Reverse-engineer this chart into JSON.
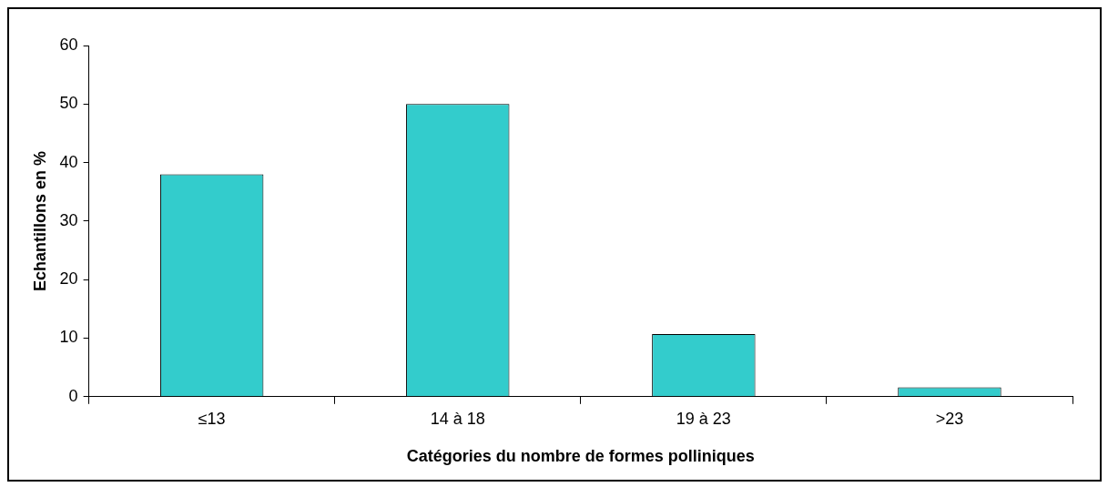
{
  "chart_data": {
    "type": "bar",
    "xlabel": "Catégories du nombre de formes polliniques",
    "ylabel": "Echantillons en %",
    "categories": [
      "≤13",
      "14 à 18",
      "19 à 23",
      ">23"
    ],
    "values": [
      38,
      50,
      10.7,
      1.6
    ],
    "color": "#33cccc",
    "ylim": [
      0,
      60
    ],
    "yticks": [
      0,
      10,
      20,
      30,
      40,
      50,
      60
    ],
    "grid": false,
    "legend": false
  }
}
